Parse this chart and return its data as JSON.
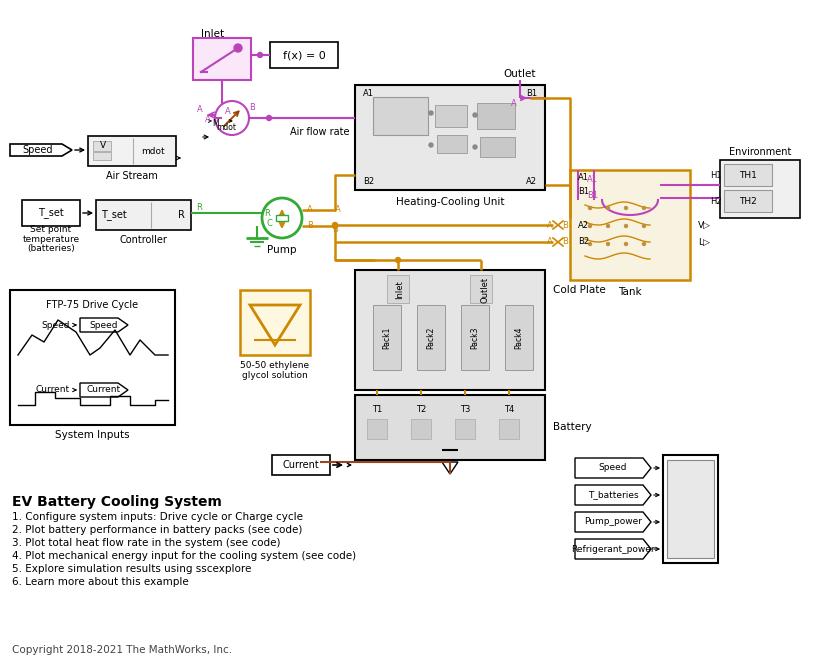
{
  "title": "EV Battery Cooling System",
  "bg_color": "#ffffff",
  "description_lines": [
    "1. Configure system inputs: Drive cycle or Charge cycle",
    "2. Plot battery performance in battery packs (see code)",
    "3. Plot total heat flow rate in the system (see code)",
    "4. Plot mechanical energy input for the cooling system (see code)",
    "5. Explore simulation results using sscexplore",
    "6. Learn more about this example"
  ],
  "copyright": "Copyright 2018-2021 The MathWorks, Inc.",
  "colors": {
    "magenta": "#BB44BB",
    "orange": "#CC8800",
    "green": "#33AA33",
    "black": "#111111",
    "gray_box": "#CCCCCC",
    "light_gray": "#E8E8E8",
    "dark_gray": "#555555",
    "tan": "#D4AA70",
    "red_brown": "#994400"
  }
}
